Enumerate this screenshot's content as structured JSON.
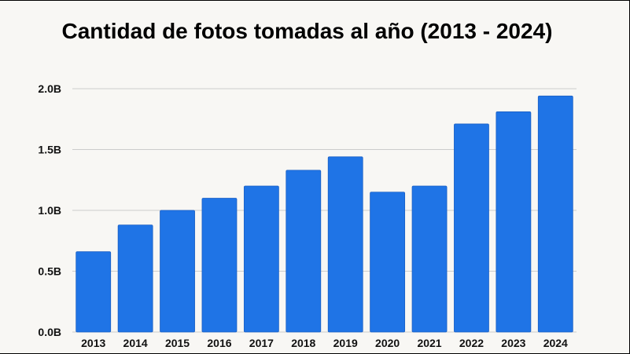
{
  "chart_data": {
    "type": "bar",
    "title": "Cantidad de fotos tomadas al año (2013 - 2024)",
    "xlabel": "",
    "ylabel": "",
    "categories": [
      "2013",
      "2014",
      "2015",
      "2016",
      "2017",
      "2018",
      "2019",
      "2020",
      "2021",
      "2022",
      "2023",
      "2024"
    ],
    "values": [
      0.66,
      0.88,
      1.0,
      1.1,
      1.2,
      1.33,
      1.44,
      1.15,
      1.2,
      1.71,
      1.81,
      1.94
    ],
    "unit": "B",
    "ylim": [
      0,
      2.0
    ],
    "yticks": [
      "0.0B",
      "0.5B",
      "1.0B",
      "1.5B",
      "2.0B"
    ],
    "ytick_values": [
      0,
      0.5,
      1.0,
      1.5,
      2.0
    ],
    "grid": true,
    "legend": "none",
    "bar_color": "#1f74e6",
    "grid_color": "#cccccc"
  }
}
